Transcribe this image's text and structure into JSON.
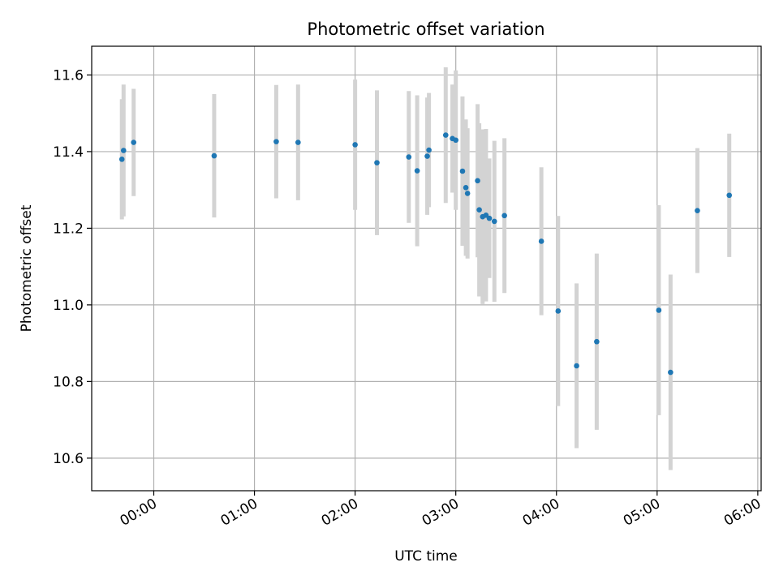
{
  "chart_data": {
    "type": "scatter",
    "title": "Photometric offset variation",
    "xlabel": "UTC time",
    "ylabel": "Photometric offset",
    "x_unit": "UTC time (HH:MM)",
    "xlim": [
      "-00:37",
      "06:02"
    ],
    "ylim": [
      10.515,
      11.675
    ],
    "x_ticks": [
      "00:00",
      "01:00",
      "02:00",
      "03:00",
      "04:00",
      "05:00",
      "06:00"
    ],
    "y_ticks": [
      "10.6",
      "10.8",
      "11.0",
      "11.2",
      "11.4",
      "11.6"
    ],
    "grid": true,
    "legend": "none",
    "colors": {
      "point": "#1f77b4",
      "errorbar": "#d3d3d3",
      "grid": "#b0b0b0"
    },
    "series": [
      {
        "points": [
          {
            "x": "-00:19",
            "y": 11.38,
            "err": 0.157
          },
          {
            "x": "-00:18",
            "y": 11.403,
            "err": 0.172
          },
          {
            "x": "-00:12",
            "y": 11.424,
            "err": 0.14
          },
          {
            "x": "00:36",
            "y": 11.389,
            "err": 0.161
          },
          {
            "x": "01:13",
            "y": 11.426,
            "err": 0.148
          },
          {
            "x": "01:26",
            "y": 11.424,
            "err": 0.151
          },
          {
            "x": "02:00",
            "y": 11.418,
            "err": 0.17
          },
          {
            "x": "02:13",
            "y": 11.371,
            "err": 0.189
          },
          {
            "x": "02:32",
            "y": 11.386,
            "err": 0.172
          },
          {
            "x": "02:37",
            "y": 11.35,
            "err": 0.197
          },
          {
            "x": "02:43",
            "y": 11.388,
            "err": 0.153
          },
          {
            "x": "02:44",
            "y": 11.404,
            "err": 0.149
          },
          {
            "x": "02:54",
            "y": 11.443,
            "err": 0.177
          },
          {
            "x": "02:58",
            "y": 11.434,
            "err": 0.141
          },
          {
            "x": "03:00",
            "y": 11.43,
            "err": 0.182
          },
          {
            "x": "03:04",
            "y": 11.349,
            "err": 0.195
          },
          {
            "x": "03:06",
            "y": 11.306,
            "err": 0.178
          },
          {
            "x": "03:07",
            "y": 11.291,
            "err": 0.17
          },
          {
            "x": "03:13",
            "y": 11.324,
            "err": 0.2
          },
          {
            "x": "03:14",
            "y": 11.248,
            "err": 0.226
          },
          {
            "x": "03:16",
            "y": 11.23,
            "err": 0.228
          },
          {
            "x": "03:18",
            "y": 11.234,
            "err": 0.225
          },
          {
            "x": "03:20",
            "y": 11.226,
            "err": 0.156
          },
          {
            "x": "03:23",
            "y": 11.218,
            "err": 0.21
          },
          {
            "x": "03:29",
            "y": 11.233,
            "err": 0.202
          },
          {
            "x": "03:51",
            "y": 11.166,
            "err": 0.193
          },
          {
            "x": "04:01",
            "y": 10.984,
            "err": 0.248
          },
          {
            "x": "04:12",
            "y": 10.841,
            "err": 0.215
          },
          {
            "x": "04:24",
            "y": 10.904,
            "err": 0.23
          },
          {
            "x": "05:01",
            "y": 10.986,
            "err": 0.274
          },
          {
            "x": "05:08",
            "y": 10.824,
            "err": 0.255
          },
          {
            "x": "05:24",
            "y": 11.246,
            "err": 0.163
          },
          {
            "x": "05:43",
            "y": 11.286,
            "err": 0.161
          }
        ]
      }
    ]
  }
}
